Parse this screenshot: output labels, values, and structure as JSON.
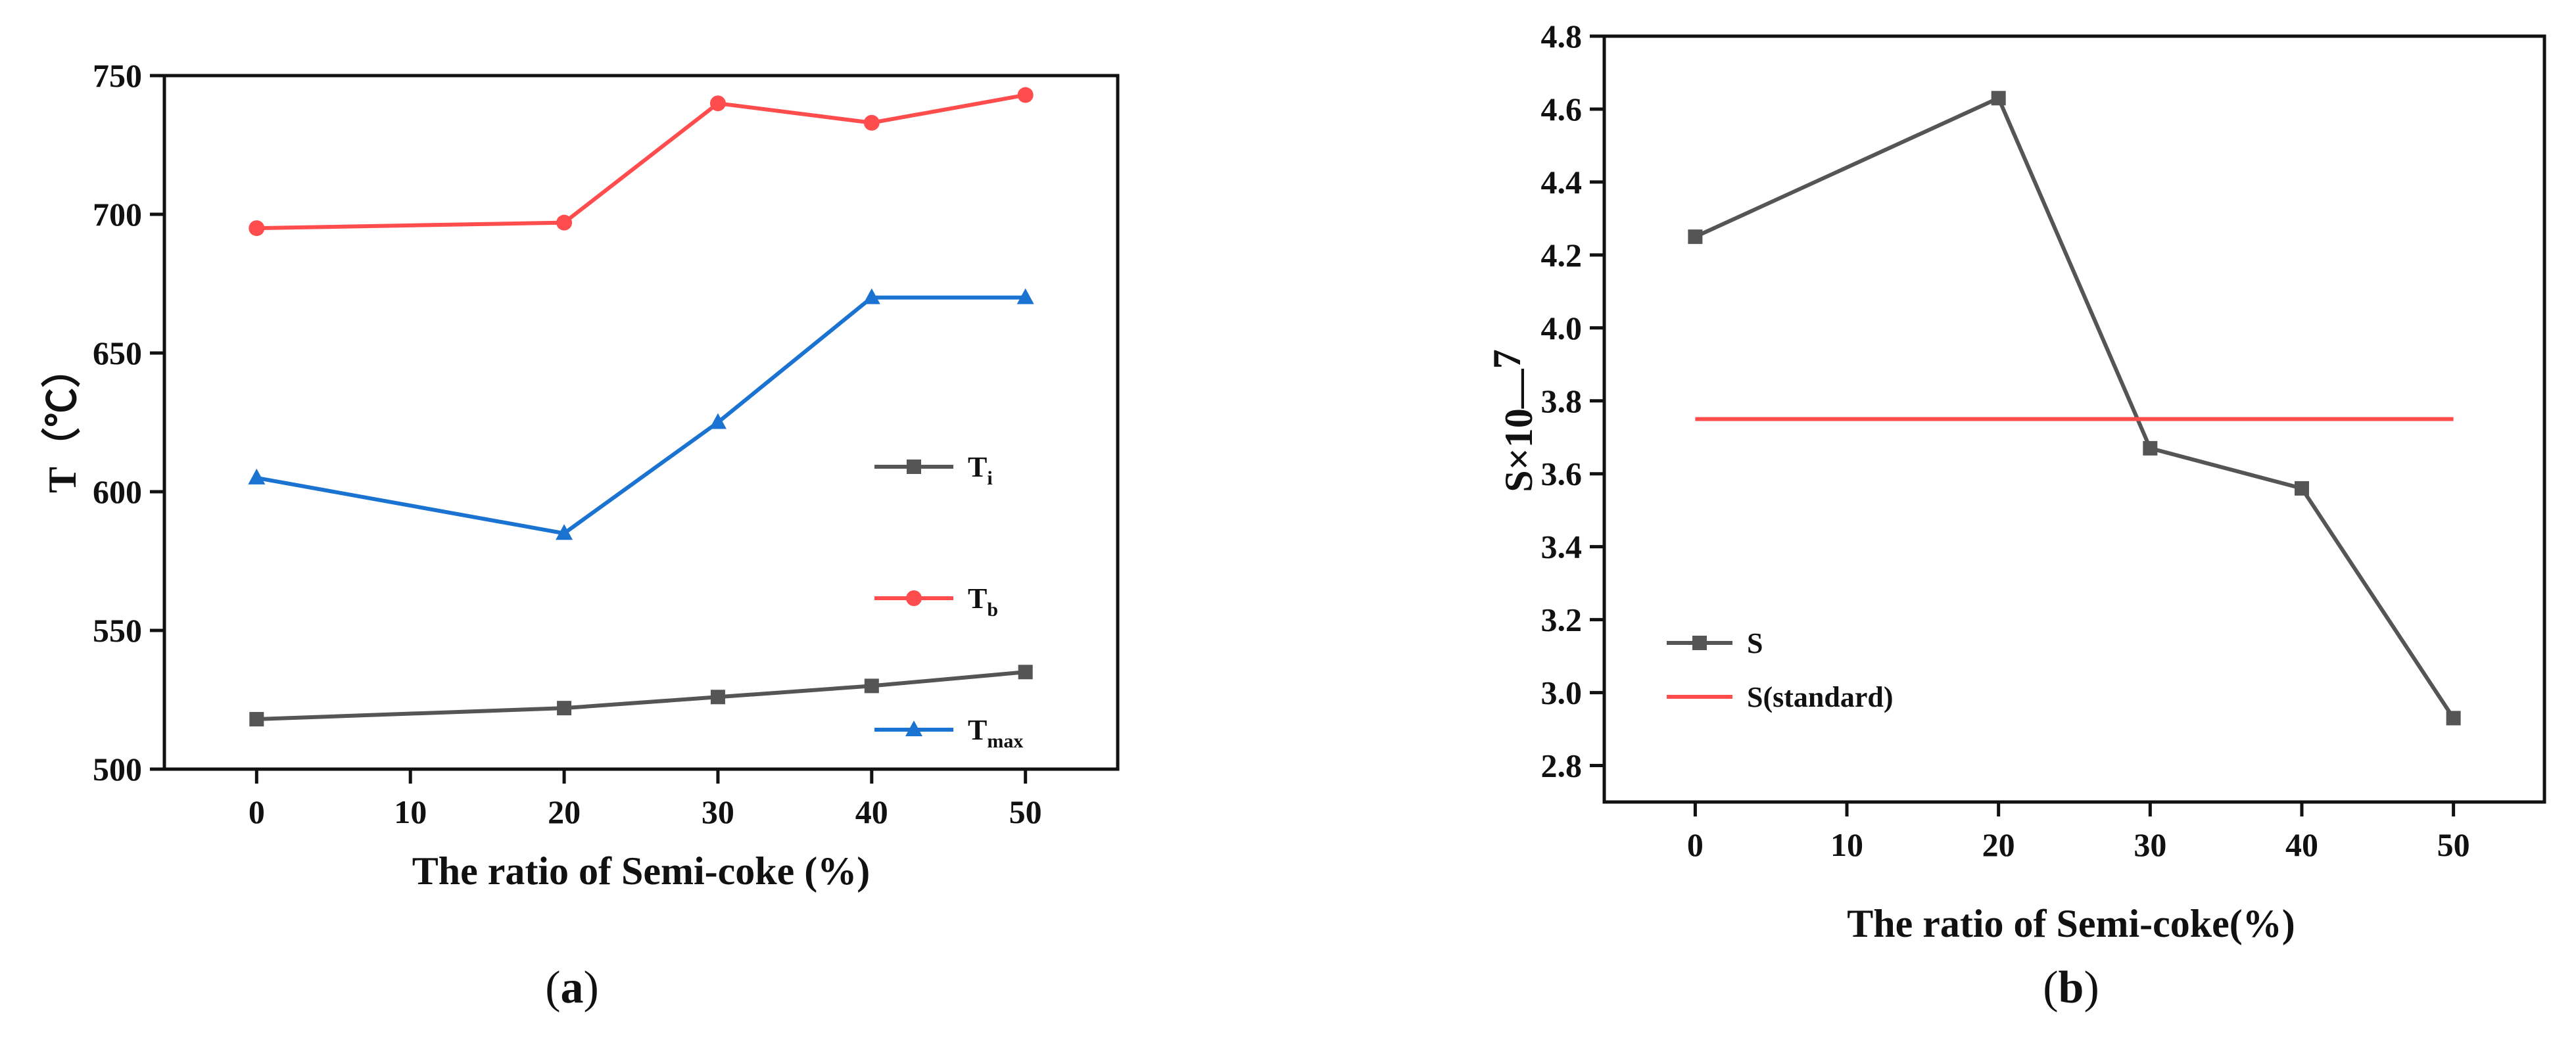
{
  "chart_data": [
    {
      "type": "line",
      "panel_label": "(a)",
      "panel_letter": "a",
      "xlabel": "The ratio of Semi-coke (%)",
      "ylabel": "T（℃）",
      "xlim": [
        -6,
        56
      ],
      "ylim": [
        500,
        750
      ],
      "xticks": [
        0,
        10,
        20,
        30,
        40,
        50
      ],
      "yticks": [
        500,
        550,
        600,
        650,
        700,
        750
      ],
      "legend_position": "right",
      "series": [
        {
          "name": "T",
          "sub": "i",
          "color": "#555555",
          "marker": "square",
          "x": [
            0,
            20,
            30,
            40,
            50
          ],
          "values": [
            518,
            522,
            526,
            530,
            535
          ]
        },
        {
          "name": "T",
          "sub": "b",
          "color": "#ff4d4d",
          "marker": "circle",
          "x": [
            0,
            20,
            30,
            40,
            50
          ],
          "values": [
            695,
            697,
            740,
            733,
            743
          ]
        },
        {
          "name": "T",
          "sub": "max",
          "color": "#1a73d1",
          "marker": "triangle",
          "x": [
            0,
            20,
            30,
            40,
            50
          ],
          "values": [
            605,
            585,
            625,
            670,
            670
          ]
        }
      ]
    },
    {
      "type": "line",
      "panel_label": "(b)",
      "panel_letter": "b",
      "xlabel": "The ratio of Semi-coke(%)",
      "ylabel": "S×10—",
      "ylabel_exp": "7",
      "xlim": [
        -6,
        56
      ],
      "ylim": [
        2.7,
        4.8
      ],
      "xticks": [
        0,
        10,
        20,
        30,
        40,
        50
      ],
      "yticks": [
        2.8,
        3.0,
        3.2,
        3.4,
        3.6,
        3.8,
        4.0,
        4.2,
        4.4,
        4.6,
        4.8
      ],
      "legend_position": "lower-left",
      "series": [
        {
          "name": "S",
          "sub": "",
          "color": "#555555",
          "marker": "square",
          "x": [
            0,
            20,
            30,
            40,
            50
          ],
          "values": [
            4.25,
            4.63,
            3.67,
            3.56,
            2.93
          ]
        },
        {
          "name": "S(standard)",
          "sub": "",
          "color": "#ff4d4d",
          "marker": "none",
          "x": [
            0,
            50
          ],
          "values": [
            3.75,
            3.75
          ]
        }
      ]
    }
  ]
}
